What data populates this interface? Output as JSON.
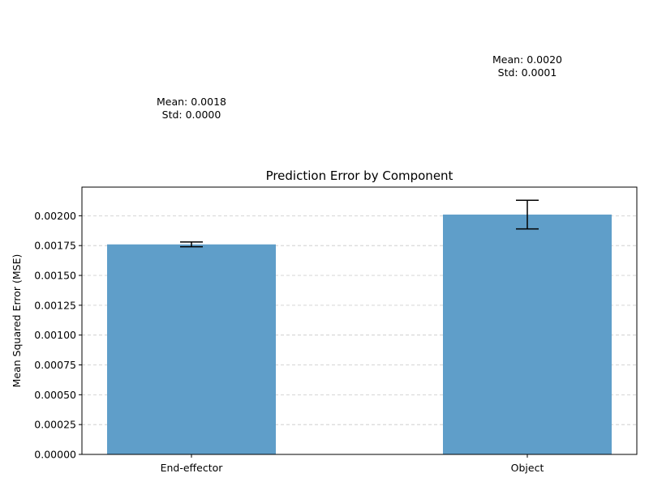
{
  "chart_data": {
    "type": "bar",
    "title": "Prediction Error by Component",
    "xlabel": "",
    "ylabel": "Mean Squared Error (MSE)",
    "categories": [
      "End-effector",
      "Object"
    ],
    "values": [
      0.00176,
      0.00201
    ],
    "errors": [
      2e-05,
      0.00012
    ],
    "ylim": [
      0,
      0.00224
    ],
    "yticks": [
      "0.00000",
      "0.00025",
      "0.00050",
      "0.00075",
      "0.00100",
      "0.00125",
      "0.00150",
      "0.00175",
      "0.00200"
    ],
    "grid": "y-dashed",
    "bar_color": "#5f9ec9",
    "annotations": [
      {
        "line1": "Mean: 0.0018",
        "line2": "Std: 0.0000"
      },
      {
        "line1": "Mean: 0.0020",
        "line2": "Std: 0.0001"
      }
    ]
  }
}
